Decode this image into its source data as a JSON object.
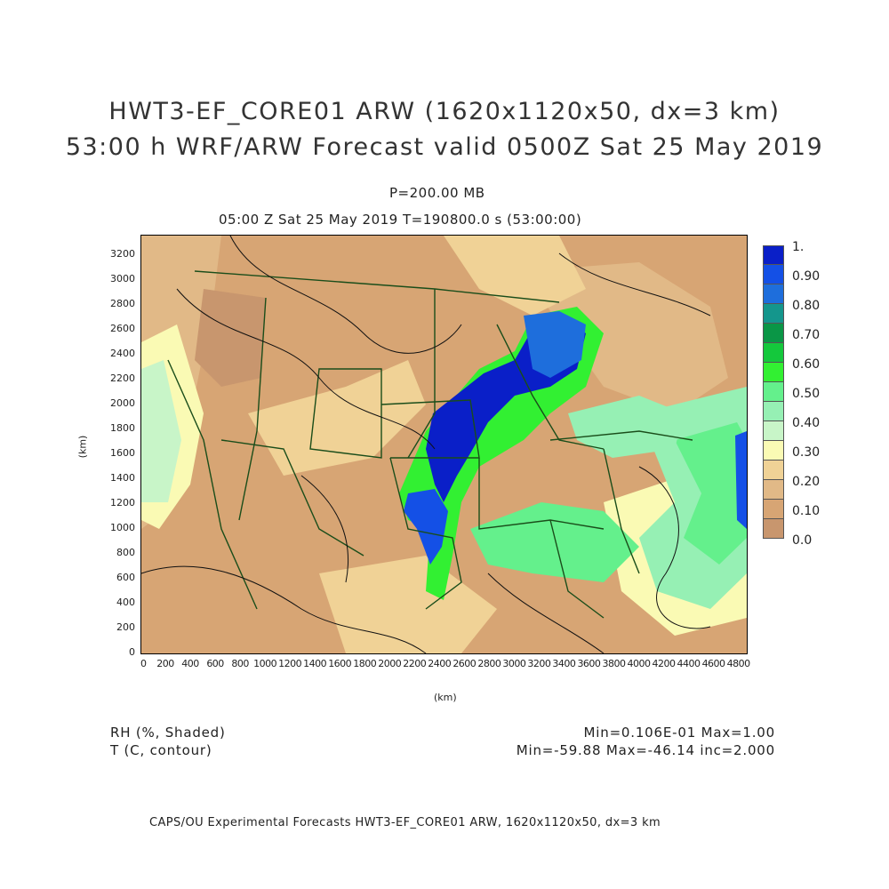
{
  "header": {
    "title_line1": "HWT3-EF_CORE01 ARW (1620x1120x50, dx=3 km)",
    "title_line2": "53:00 h WRF/ARW Forecast valid 0500Z Sat 25 May 2019",
    "level": "P=200.00 MB",
    "time_line": "05:00 Z Sat 25 May 2019    T=190800.0 s (53:00:00)"
  },
  "axes": {
    "x_label": "(km)",
    "y_label": "(km)",
    "x_ticks": [
      "0",
      "200",
      "400",
      "600",
      "800",
      "1000",
      "1200",
      "1400",
      "1600",
      "1800",
      "2000",
      "2200",
      "2400",
      "2600",
      "2800",
      "3000",
      "3200",
      "3400",
      "3600",
      "3800",
      "4000",
      "4200",
      "4400",
      "4600",
      "4800"
    ],
    "y_ticks": [
      "0",
      "200",
      "400",
      "600",
      "800",
      "1000",
      "1200",
      "1400",
      "1600",
      "1800",
      "2000",
      "2200",
      "2400",
      "2600",
      "2800",
      "3000",
      "3200"
    ],
    "x_range": [
      0,
      4860
    ],
    "y_range": [
      0,
      3360
    ]
  },
  "colorbar": {
    "labels": [
      "1.",
      "0.90",
      "0.80",
      "0.70",
      "0.60",
      "0.50",
      "0.40",
      "0.30",
      "0.20",
      "0.10",
      "0.0"
    ],
    "colors": [
      "#0a1fc8",
      "#1450e6",
      "#1e6edc",
      "#14968c",
      "#0a9646",
      "#14c83c",
      "#32f032",
      "#64f08c",
      "#96f0b4",
      "#c8f5c8",
      "#fafab4",
      "#f0d296",
      "#e1b987",
      "#d7a574",
      "#c8966e"
    ]
  },
  "footer": {
    "left_line1": "RH (%, Shaded)",
    "left_line2": "T (C, contour)",
    "right_line1": "Min=0.106E-01 Max=1.00",
    "right_line2": "Min=-59.88 Max=-46.14 inc=2.000"
  },
  "credit": "CAPS/OU Experimental Forecasts  HWT3-EF_CORE01 ARW, 1620x1120x50, dx=3 km"
}
